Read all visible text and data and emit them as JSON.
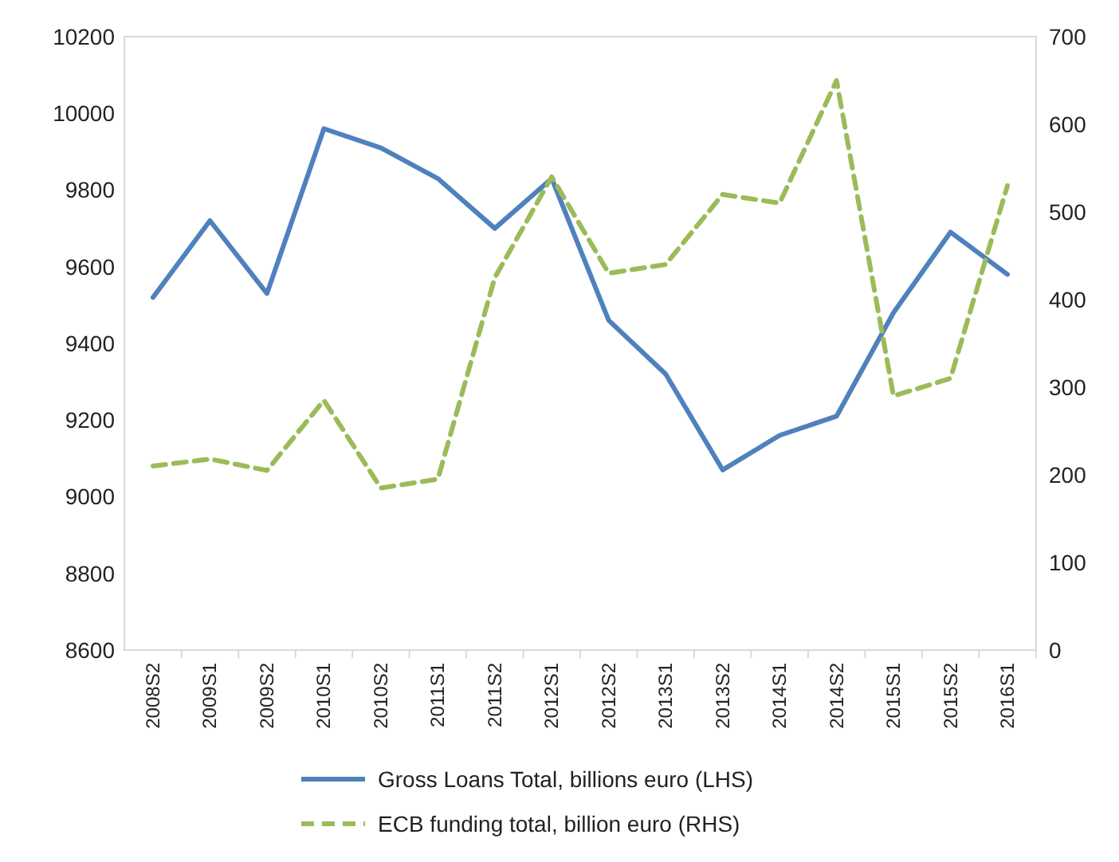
{
  "chart_data": {
    "type": "line",
    "categories": [
      "2008S2",
      "2009S1",
      "2009S2",
      "2010S1",
      "2010S2",
      "2011S1",
      "2011S2",
      "2012S1",
      "2012S2",
      "2013S1",
      "2013S2",
      "2014S1",
      "2014S2",
      "2015S1",
      "2015S2",
      "2016S1"
    ],
    "series": [
      {
        "name": "Gross Loans Total, billions euro (LHS)",
        "color": "#4f81bd",
        "line_style": "solid",
        "values": [
          9520,
          9720,
          9530,
          9960,
          9910,
          9830,
          9700,
          9830,
          9460,
          9320,
          9070,
          9160,
          9210,
          9480,
          9690,
          9580
        ]
      },
      {
        "name": "ECB funding total, billion euro (RHS)",
        "color": "#9bbb59",
        "line_style": "dashed",
        "axis": "y2",
        "values": [
          210,
          218,
          205,
          285,
          185,
          195,
          425,
          540,
          430,
          440,
          520,
          510,
          650,
          290,
          310,
          530
        ]
      }
    ],
    "ylim": [
      8600,
      10200
    ],
    "yticks": [
      8600,
      8800,
      9000,
      9200,
      9400,
      9600,
      9800,
      10000,
      10200
    ],
    "y2lim": [
      0,
      700
    ],
    "y2ticks": [
      0,
      100,
      200,
      300,
      400,
      500,
      600,
      700
    ],
    "legend": "bottom",
    "marker": "none",
    "grid": false
  }
}
